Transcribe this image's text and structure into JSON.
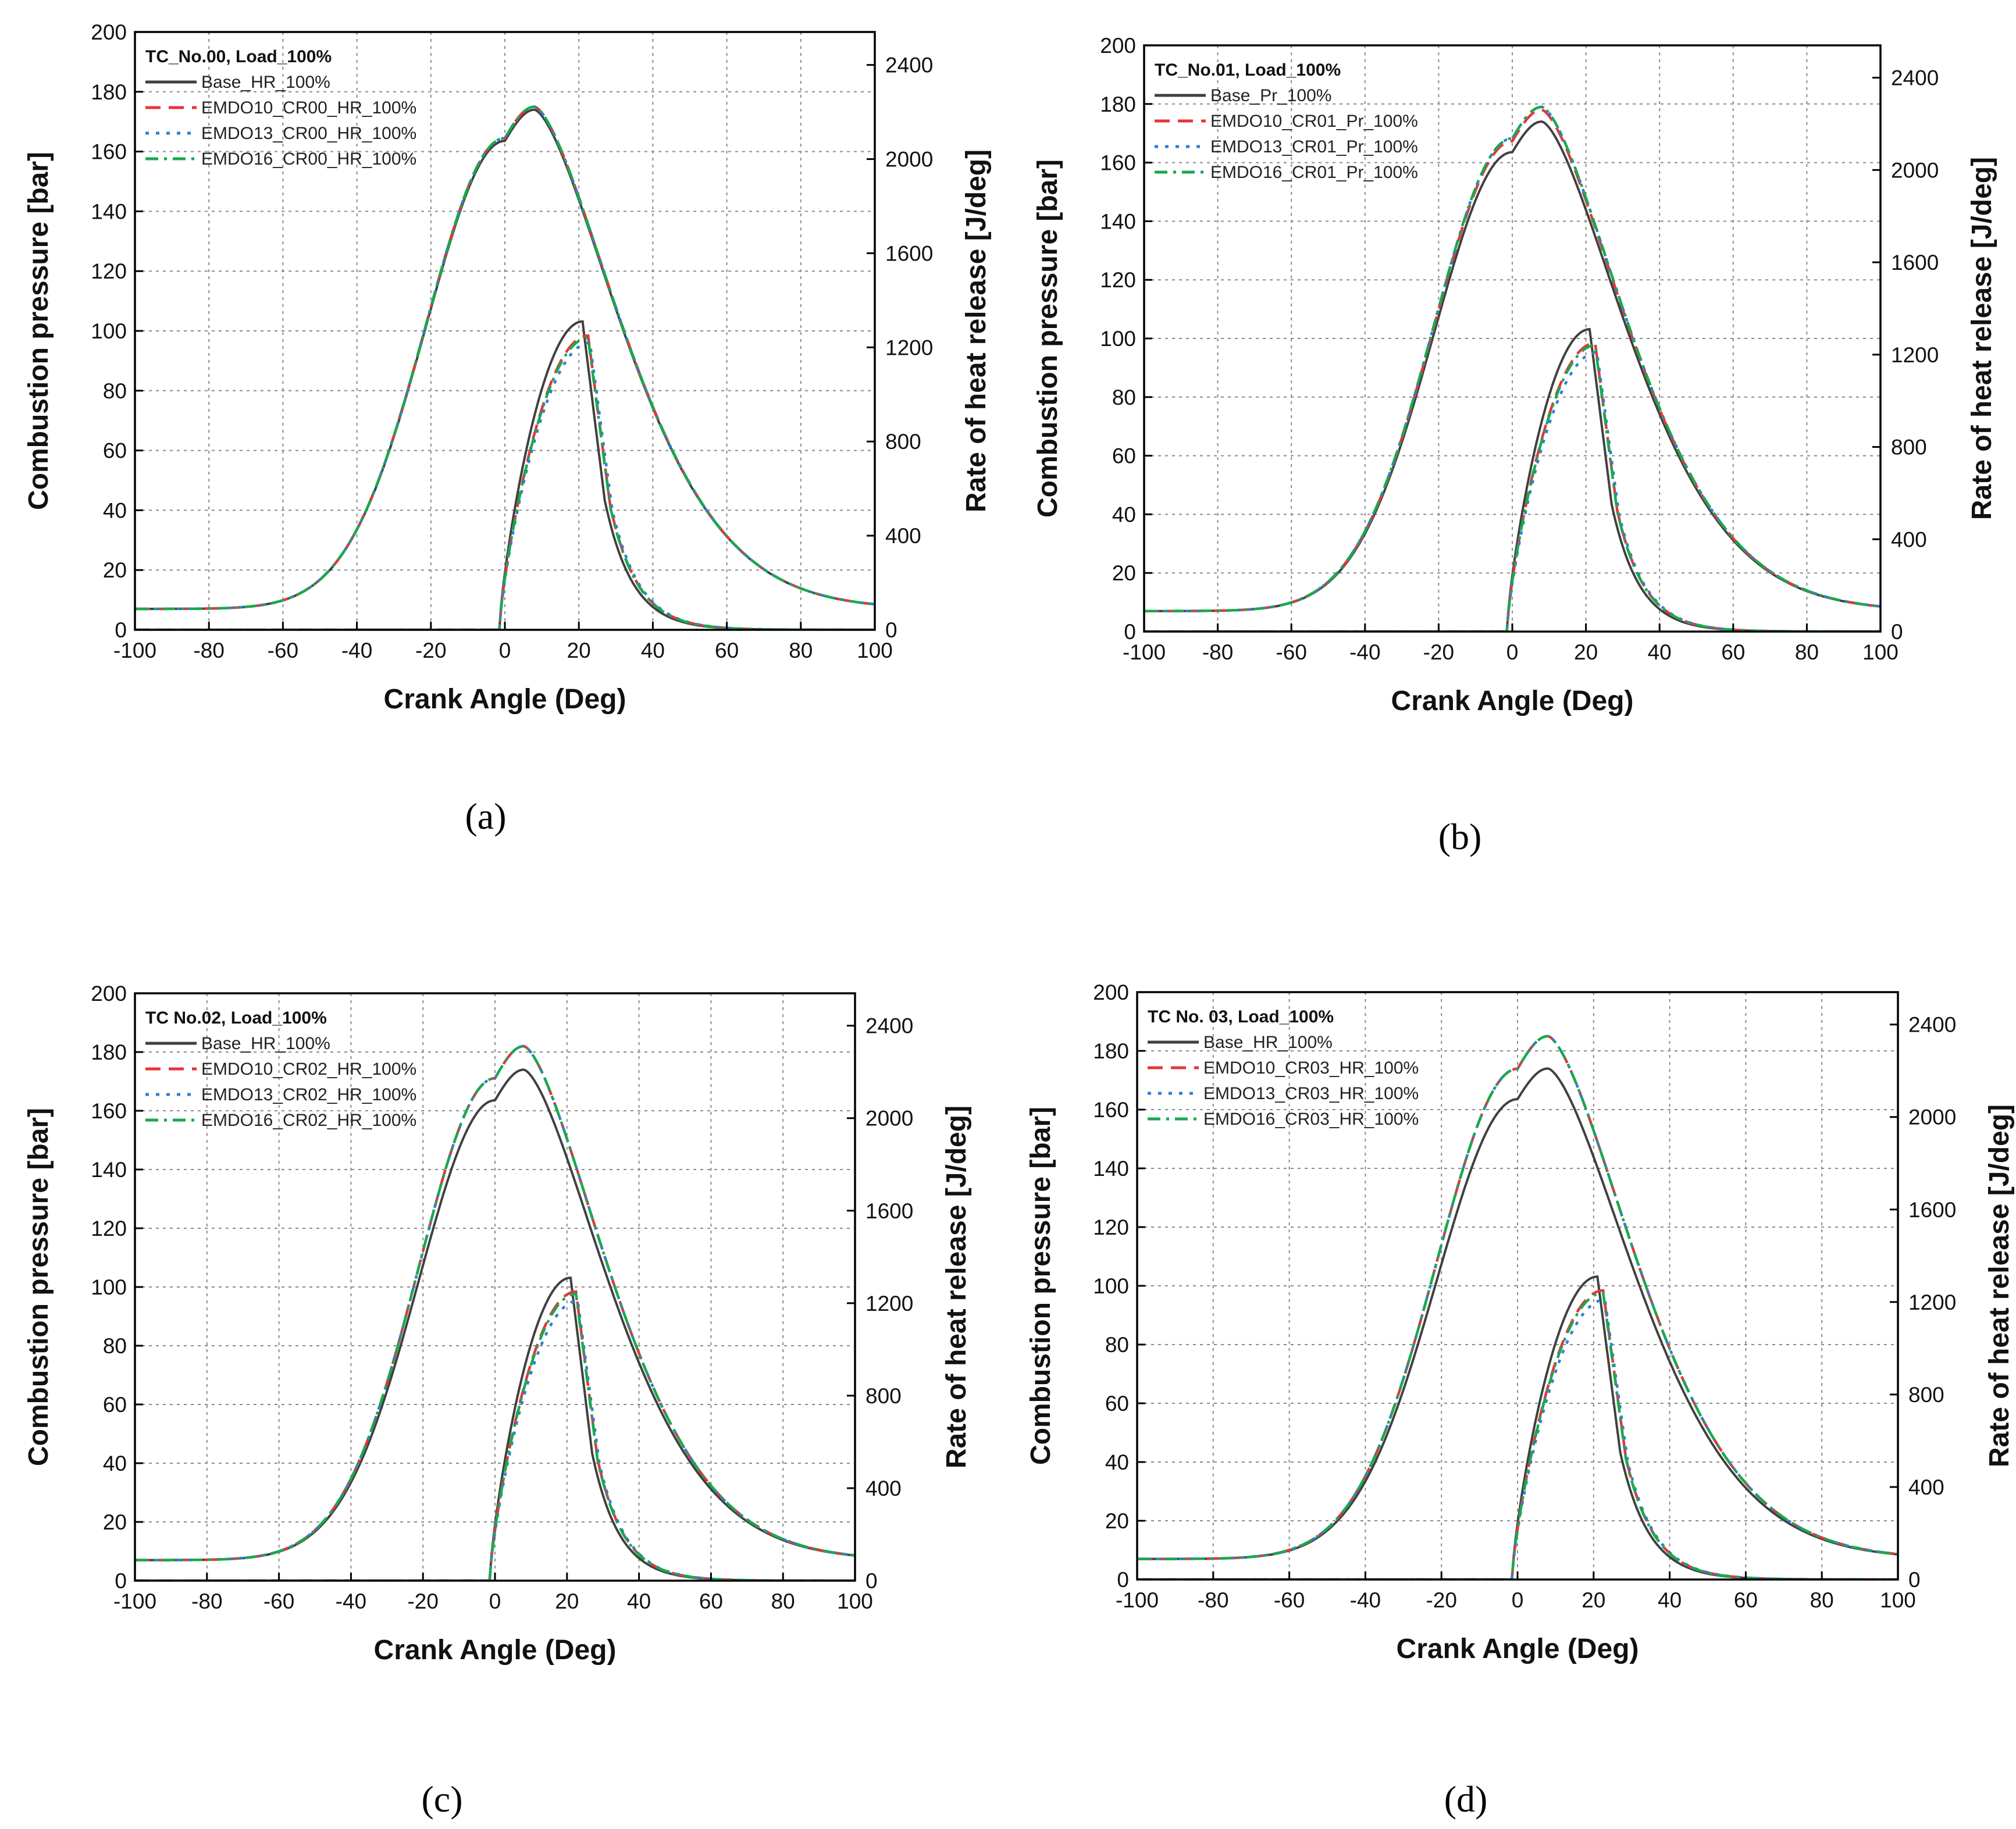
{
  "figure": {
    "colors": {
      "base": "#404040",
      "emdo10": "#e8343a",
      "emdo13": "#2f7fd3",
      "emdo16": "#1aa84f",
      "grid": "#8a8a8a"
    },
    "panel_labels": [
      "(a)",
      "(b)",
      "(c)",
      "(d)"
    ]
  },
  "chart_data": [
    {
      "type": "line",
      "panel": "(a)",
      "title": "TC_No.00, Load_100%",
      "xlabel": "Crank Angle (Deg)",
      "ylabel": "Combustion pressure [bar]",
      "y2label": "Rate of heat release [J/deg]",
      "xlim": [
        -100,
        100
      ],
      "ylim": [
        0,
        200
      ],
      "y2lim": [
        0,
        2540
      ],
      "xticks": [
        "-100",
        "-80",
        "-60",
        "-40",
        "-20",
        "0",
        "20",
        "40",
        "60",
        "80",
        "100"
      ],
      "yticks": [
        "0",
        "20",
        "40",
        "60",
        "80",
        "100",
        "120",
        "140",
        "160",
        "180",
        "200"
      ],
      "y2ticks": [
        "0",
        "400",
        "800",
        "1200",
        "1600",
        "2000",
        "2400"
      ],
      "grid": true,
      "legend_position": "top-left",
      "series": [
        {
          "name": "Base_HR_100%",
          "style": "solid",
          "color": "#404040",
          "p_peak": 174,
          "hr_peak": 1310,
          "hr_peak_deg": 21
        },
        {
          "name": "EMDO10_CR00_HR_100%",
          "style": "dashed",
          "color": "#e8343a",
          "p_peak": 175,
          "hr_peak": 1250,
          "hr_peak_deg": 22.5
        },
        {
          "name": "EMDO13_CR00_HR_100%",
          "style": "dotted",
          "color": "#2f7fd3",
          "p_peak": 175,
          "hr_peak": 1220,
          "hr_peak_deg": 23
        },
        {
          "name": "EMDO16_CR00_HR_100%",
          "style": "dashdot",
          "color": "#1aa84f",
          "p_peak": 175,
          "hr_peak": 1240,
          "hr_peak_deg": 22.5
        }
      ]
    },
    {
      "type": "line",
      "panel": "(b)",
      "title": "TC_No.01, Load_100%",
      "xlabel": "Crank Angle (Deg)",
      "ylabel": "Combustion pressure [bar]",
      "y2label": "Rate of heat release [J/deg]",
      "xlim": [
        -100,
        100
      ],
      "ylim": [
        0,
        200
      ],
      "y2lim": [
        0,
        2540
      ],
      "xticks": [
        "-100",
        "-80",
        "-60",
        "-40",
        "-20",
        "0",
        "20",
        "40",
        "60",
        "80",
        "100"
      ],
      "yticks": [
        "0",
        "20",
        "40",
        "60",
        "80",
        "100",
        "120",
        "140",
        "160",
        "180",
        "200"
      ],
      "y2ticks": [
        "0",
        "400",
        "800",
        "1200",
        "1600",
        "2000",
        "2400"
      ],
      "grid": true,
      "legend_position": "top-left",
      "series": [
        {
          "name": "Base_Pr_100%",
          "style": "solid",
          "color": "#404040",
          "p_peak": 174,
          "hr_peak": 1310,
          "hr_peak_deg": 21
        },
        {
          "name": "EMDO10_CR01_Pr_100%",
          "style": "dashed",
          "color": "#e8343a",
          "p_peak": 178,
          "hr_peak": 1250,
          "hr_peak_deg": 22.5
        },
        {
          "name": "EMDO13_CR01_Pr_100%",
          "style": "dotted",
          "color": "#2f7fd3",
          "p_peak": 179,
          "hr_peak": 1210,
          "hr_peak_deg": 23
        },
        {
          "name": "EMDO16_CR01_Pr_100%",
          "style": "dashdot",
          "color": "#1aa84f",
          "p_peak": 179,
          "hr_peak": 1240,
          "hr_peak_deg": 22.5
        }
      ]
    },
    {
      "type": "line",
      "panel": "(c)",
      "title": "TC No.02, Load_100%",
      "xlabel": "Crank Angle (Deg)",
      "ylabel": "Combustion pressure [bar]",
      "y2label": "Rate of heat release [J/deg]",
      "xlim": [
        -100,
        100
      ],
      "ylim": [
        0,
        200
      ],
      "y2lim": [
        0,
        2540
      ],
      "xticks": [
        "-100",
        "-80",
        "-60",
        "-40",
        "-20",
        "0",
        "20",
        "40",
        "60",
        "80",
        "100"
      ],
      "yticks": [
        "0",
        "20",
        "40",
        "60",
        "80",
        "100",
        "120",
        "140",
        "160",
        "180",
        "200"
      ],
      "y2ticks": [
        "0",
        "400",
        "800",
        "1200",
        "1600",
        "2000",
        "2400"
      ],
      "grid": true,
      "legend_position": "top-left",
      "series": [
        {
          "name": "Base_HR_100%",
          "style": "solid",
          "color": "#404040",
          "p_peak": 174,
          "hr_peak": 1310,
          "hr_peak_deg": 21
        },
        {
          "name": "EMDO10_CR02_HR_100%",
          "style": "dashed",
          "color": "#e8343a",
          "p_peak": 182,
          "hr_peak": 1250,
          "hr_peak_deg": 22.5
        },
        {
          "name": "EMDO13_CR02_HR_100%",
          "style": "dotted",
          "color": "#2f7fd3",
          "p_peak": 182,
          "hr_peak": 1210,
          "hr_peak_deg": 23
        },
        {
          "name": "EMDO16_CR02_HR_100%",
          "style": "dashdot",
          "color": "#1aa84f",
          "p_peak": 182,
          "hr_peak": 1240,
          "hr_peak_deg": 22.5
        }
      ]
    },
    {
      "type": "line",
      "panel": "(d)",
      "title": "TC No. 03, Load_100%",
      "xlabel": "Crank Angle (Deg)",
      "ylabel": "Combustion pressure [bar]",
      "y2label": "Rate of heat release [J/deg]",
      "xlim": [
        -100,
        100
      ],
      "ylim": [
        0,
        200
      ],
      "y2lim": [
        0,
        2540
      ],
      "xticks": [
        "-100",
        "-80",
        "-60",
        "-40",
        "-20",
        "0",
        "20",
        "40",
        "60",
        "80",
        "100"
      ],
      "yticks": [
        "0",
        "20",
        "40",
        "60",
        "80",
        "100",
        "120",
        "140",
        "160",
        "180",
        "200"
      ],
      "y2ticks": [
        "0",
        "400",
        "800",
        "1200",
        "1600",
        "2000",
        "2400"
      ],
      "grid": true,
      "legend_position": "top-left",
      "series": [
        {
          "name": "Base_HR_100%",
          "style": "solid",
          "color": "#404040",
          "p_peak": 174,
          "hr_peak": 1310,
          "hr_peak_deg": 21
        },
        {
          "name": "EMDO10_CR03_HR_100%",
          "style": "dashed",
          "color": "#e8343a",
          "p_peak": 185,
          "hr_peak": 1250,
          "hr_peak_deg": 22.5
        },
        {
          "name": "EMDO13_CR03_HR_100%",
          "style": "dotted",
          "color": "#2f7fd3",
          "p_peak": 185,
          "hr_peak": 1210,
          "hr_peak_deg": 23
        },
        {
          "name": "EMDO16_CR03_HR_100%",
          "style": "dashdot",
          "color": "#1aa84f",
          "p_peak": 185,
          "hr_peak": 1240,
          "hr_peak_deg": 22.5
        }
      ]
    }
  ]
}
